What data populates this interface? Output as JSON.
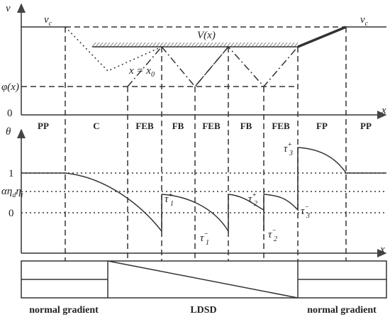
{
  "top_panel": {
    "y_axis": "v",
    "x_axis": "x",
    "vc_left": {
      "base": "v",
      "sub": "c"
    },
    "vc_right": {
      "base": "v",
      "sub": "c"
    },
    "limit": "V(x)",
    "switch_point": {
      "base": "x = x",
      "sub": "0"
    },
    "phi": "φ(x)",
    "origin": "0",
    "phases": [
      "PP",
      "C",
      "FEB",
      "FB",
      "FEB",
      "FB",
      "FEB",
      "FP",
      "PP"
    ]
  },
  "bottom_panel": {
    "y_axis": "θ",
    "x_axis": "x",
    "one": "1",
    "threshold": {
      "base": "αη",
      "sub1": "d",
      "mid": "η",
      "sub2": "t"
    },
    "zero": "0",
    "taus": [
      {
        "base": "τ",
        "sup": "+",
        "sub": "1"
      },
      {
        "base": "τ",
        "sup": "−",
        "sub": "1"
      },
      {
        "base": "τ",
        "sup": "+",
        "sub": "2"
      },
      {
        "base": "τ",
        "sup": "−",
        "sub": "2"
      },
      {
        "base": "τ",
        "sup": "+",
        "sub": "3"
      },
      {
        "base": "τ",
        "sup": "−",
        "sub": "3"
      }
    ]
  },
  "gradient_strip": {
    "left": "normal gradient",
    "middle": "LDSD",
    "right": "normal gradient"
  }
}
